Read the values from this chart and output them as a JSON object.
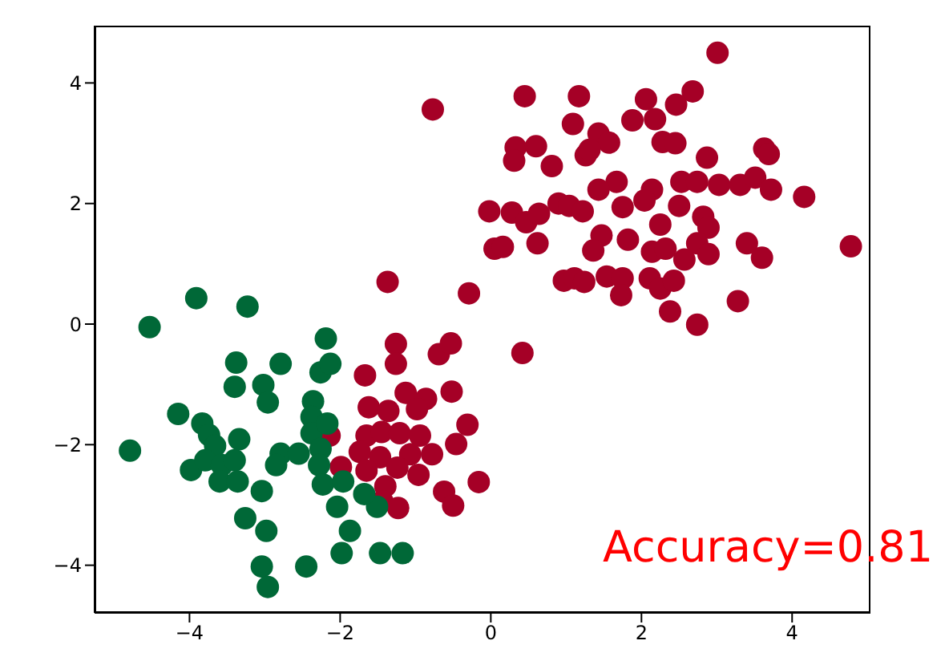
{
  "chart_data": {
    "type": "scatter",
    "xlim": [
      -5.26,
      5.04
    ],
    "ylim": [
      -4.79,
      4.95
    ],
    "xticks": [
      {
        "value": -4,
        "label": "−4"
      },
      {
        "value": -2,
        "label": "−2"
      },
      0,
      2,
      4
    ],
    "yticks": [
      {
        "value": -4,
        "label": "−4"
      },
      {
        "value": -2,
        "label": "−2"
      },
      0,
      2,
      4
    ],
    "grid": false,
    "legend": false,
    "marker": "circle",
    "annotations": [
      "Accuracy=0.81"
    ],
    "series": [
      {
        "color": "#a50026",
        "x": [
          -1.37,
          -0.29,
          0.42,
          -0.77,
          -1.26,
          -1.26,
          -0.69,
          -0.53,
          -1.67,
          -1.13,
          -0.86,
          -0.52,
          -1.62,
          -1.36,
          -0.98,
          -0.31,
          -2.14,
          -1.65,
          -1.45,
          -1.21,
          -0.94,
          -0.46,
          -1.74,
          -1.47,
          -1.07,
          -0.78,
          -1.99,
          -1.65,
          -0.96,
          -1.24,
          -1.4,
          -0.16,
          -0.62,
          -0.5,
          -1.44,
          -1.23,
          3.01,
          0.45,
          1.17,
          2.06,
          2.68,
          2.46,
          1.88,
          2.18,
          1.09,
          1.43,
          1.57,
          1.26,
          1.31,
          0.33,
          0.6,
          0.31,
          0.81,
          2.28,
          2.45,
          2.87,
          3.63,
          3.69,
          4.16,
          4.78,
          1.67,
          1.43,
          2.14,
          2.53,
          2.74,
          3.03,
          3.31,
          3.51,
          3.72,
          -0.02,
          0.28,
          0.47,
          0.64,
          0.9,
          1.04,
          1.22,
          1.75,
          2.04,
          2.5,
          2.82,
          2.89,
          2.25,
          0.05,
          0.16,
          0.62,
          1.47,
          1.36,
          1.82,
          2.14,
          2.32,
          2.74,
          2.89,
          3.4,
          3.6,
          2.57,
          0.97,
          1.11,
          1.24,
          1.54,
          1.75,
          1.73,
          2.11,
          2.25,
          2.43,
          2.38,
          2.74,
          3.28
        ],
        "values": [
          0.7,
          0.51,
          -0.48,
          3.56,
          -0.33,
          -0.66,
          -0.5,
          -0.32,
          -0.85,
          -1.14,
          -1.24,
          -1.12,
          -1.38,
          -1.44,
          -1.41,
          -1.67,
          -1.85,
          -1.85,
          -1.79,
          -1.81,
          -1.85,
          -1.99,
          -2.12,
          -2.21,
          -2.16,
          -2.16,
          -2.37,
          -2.43,
          -2.5,
          -2.38,
          -2.69,
          -2.62,
          -2.78,
          -3.01,
          -2.94,
          -3.05,
          4.5,
          3.78,
          3.78,
          3.73,
          3.86,
          3.64,
          3.38,
          3.4,
          3.32,
          3.16,
          3.01,
          2.8,
          2.89,
          2.93,
          2.95,
          2.71,
          2.62,
          3.02,
          3.0,
          2.76,
          2.91,
          2.82,
          2.11,
          1.29,
          2.36,
          2.23,
          2.23,
          2.36,
          2.36,
          2.31,
          2.31,
          2.43,
          2.23,
          1.87,
          1.85,
          1.69,
          1.83,
          2.0,
          1.96,
          1.87,
          1.94,
          2.05,
          1.96,
          1.78,
          1.6,
          1.65,
          1.25,
          1.28,
          1.34,
          1.47,
          1.22,
          1.4,
          1.2,
          1.25,
          1.34,
          1.16,
          1.34,
          1.1,
          1.07,
          0.72,
          0.76,
          0.7,
          0.79,
          0.76,
          0.48,
          0.76,
          0.59,
          0.72,
          0.21,
          -0.01,
          0.38
        ]
      },
      {
        "color": "#006837",
        "x": [
          -4.53,
          -3.91,
          -3.23,
          -4.79,
          -4.15,
          -3.98,
          -3.83,
          -3.74,
          -3.66,
          -3.79,
          -3.57,
          -3.4,
          -3.38,
          -3.34,
          -3.4,
          -3.6,
          -3.36,
          -3.26,
          -3.04,
          -2.98,
          -3.04,
          -2.96,
          -3.02,
          -2.96,
          -2.79,
          -2.79,
          -2.85,
          -2.55,
          -2.36,
          -2.38,
          -2.38,
          -2.26,
          -2.28,
          -2.26,
          -2.19,
          -2.13,
          -2.17,
          -2.23,
          -1.96,
          -2.04,
          -1.87,
          -1.98,
          -2.45,
          -1.51,
          -1.47,
          -1.17,
          -1.68
        ],
        "values": [
          -0.05,
          0.43,
          0.29,
          -2.1,
          -1.49,
          -2.42,
          -1.65,
          -1.84,
          -2.02,
          -2.26,
          -2.34,
          -1.04,
          -0.64,
          -1.91,
          -2.26,
          -2.61,
          -2.61,
          -3.22,
          -2.77,
          -3.43,
          -4.02,
          -4.36,
          -1.01,
          -1.3,
          -0.66,
          -2.15,
          -2.34,
          -2.15,
          -1.28,
          -1.54,
          -1.81,
          -2.07,
          -2.34,
          -0.8,
          -0.24,
          -0.66,
          -1.65,
          -2.66,
          -2.61,
          -3.03,
          -3.43,
          -3.8,
          -4.02,
          -3.03,
          -3.8,
          -3.8,
          -2.82
        ]
      }
    ]
  }
}
